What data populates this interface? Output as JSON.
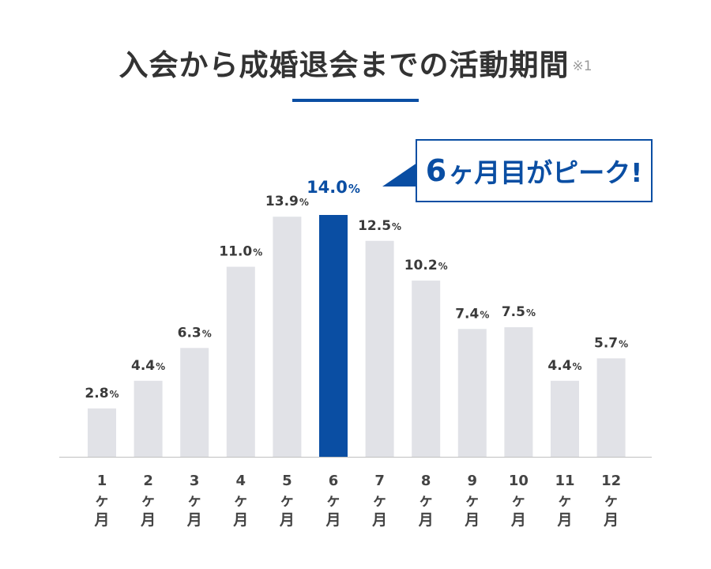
{
  "title": "入会から成婚退会までの活動期間",
  "title_note": "※1",
  "callout": {
    "number": "6",
    "text": "ヶ月目がピーク!"
  },
  "colors": {
    "bar": "#e1e2e7",
    "highlight": "#0a4ea3",
    "value_text": "#3a3a3a",
    "axis": "#bfbfbf"
  },
  "chart_data": {
    "type": "bar",
    "title": "入会から成婚退会までの活動期間",
    "categories": [
      {
        "n": "1",
        "unit": [
          "ヶ",
          "月"
        ]
      },
      {
        "n": "2",
        "unit": [
          "ヶ",
          "月"
        ]
      },
      {
        "n": "3",
        "unit": [
          "ヶ",
          "月"
        ]
      },
      {
        "n": "4",
        "unit": [
          "ヶ",
          "月"
        ]
      },
      {
        "n": "5",
        "unit": [
          "ヶ",
          "月"
        ]
      },
      {
        "n": "6",
        "unit": [
          "ヶ",
          "月"
        ]
      },
      {
        "n": "7",
        "unit": [
          "ヶ",
          "月"
        ]
      },
      {
        "n": "8",
        "unit": [
          "ヶ",
          "月"
        ]
      },
      {
        "n": "9",
        "unit": [
          "ヶ",
          "月"
        ]
      },
      {
        "n": "10",
        "unit": [
          "ヶ",
          "月"
        ]
      },
      {
        "n": "11",
        "unit": [
          "ヶ",
          "月"
        ]
      },
      {
        "n": "12",
        "unit": [
          "ヶ",
          "月"
        ]
      }
    ],
    "values": [
      2.8,
      4.4,
      6.3,
      11.0,
      13.9,
      14.0,
      12.5,
      10.2,
      7.4,
      7.5,
      4.4,
      5.7
    ],
    "value_labels": [
      "2.8",
      "4.4",
      "6.3",
      "11.0",
      "13.9",
      "14.0",
      "12.5",
      "10.2",
      "7.4",
      "7.5",
      "4.4",
      "5.7"
    ],
    "value_unit": "%",
    "highlight_index": 5,
    "ylim": [
      0,
      14
    ],
    "xlabel": "",
    "ylabel": ""
  }
}
